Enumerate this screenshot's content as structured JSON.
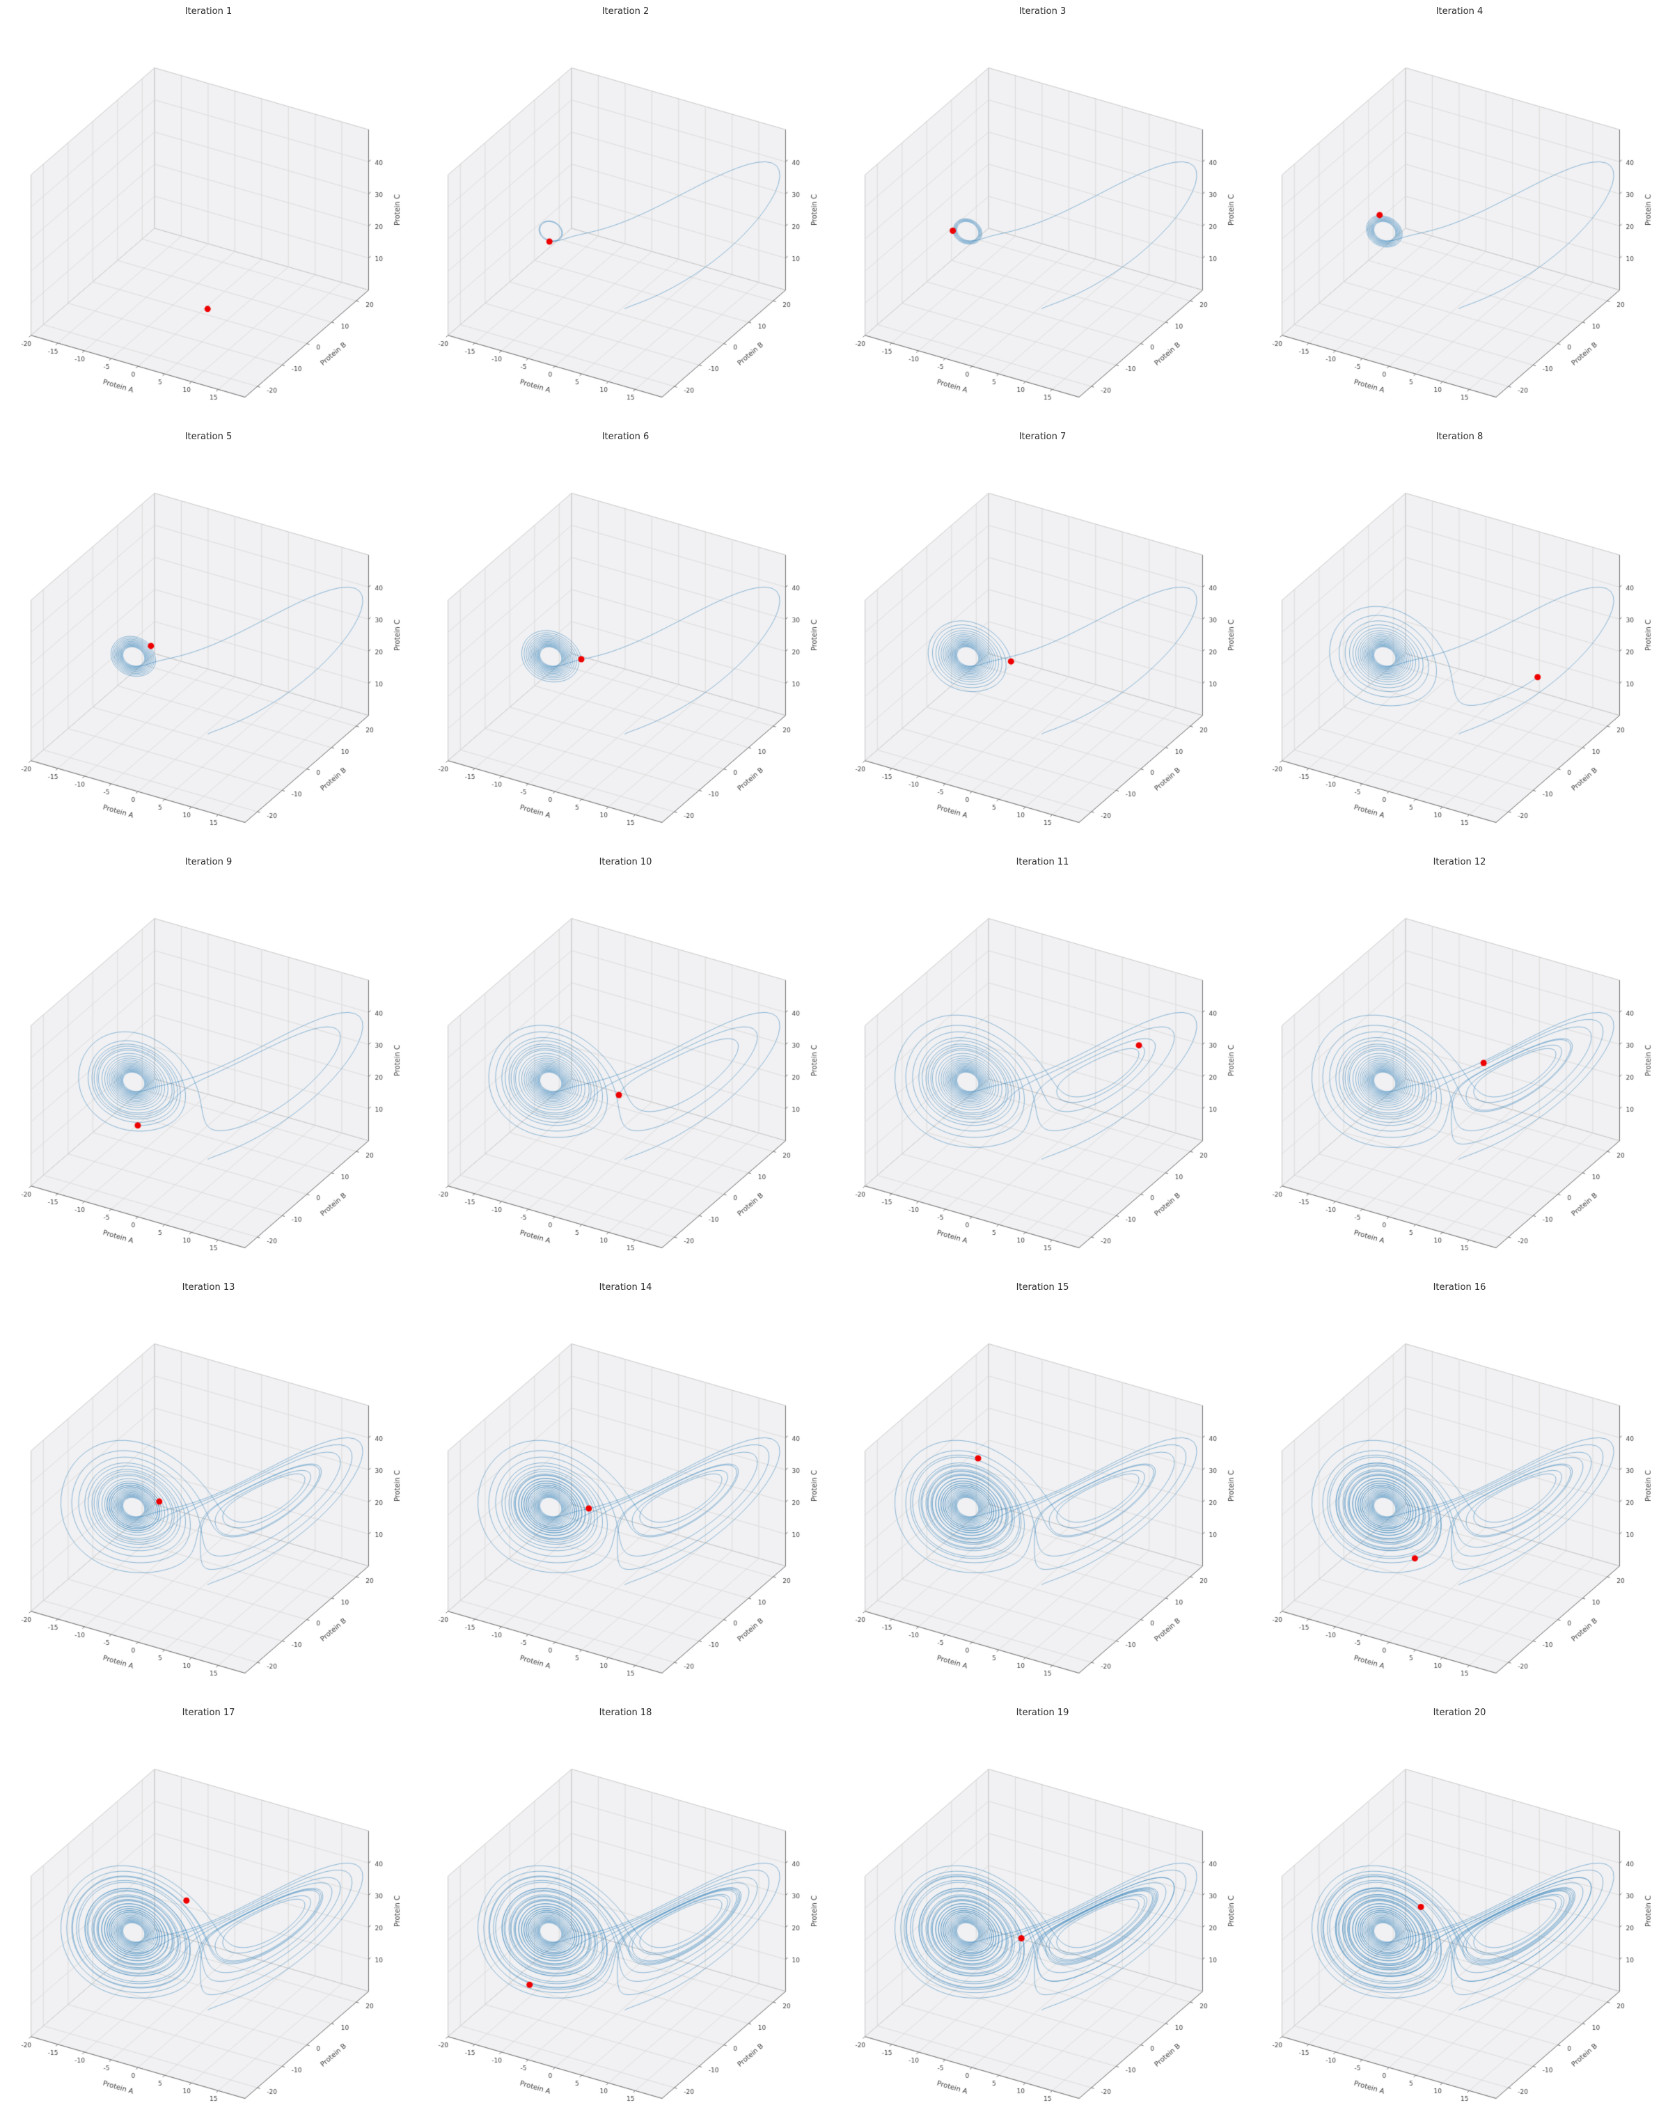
{
  "page": {
    "background": "#ffffff"
  },
  "chart_data": {
    "type": "line",
    "subtype": "3d_trajectory_small_multiples",
    "grid": {
      "rows": 5,
      "cols": 4
    },
    "subplots": [
      {
        "title": "Iteration 1"
      },
      {
        "title": "Iteration 2"
      },
      {
        "title": "Iteration 3"
      },
      {
        "title": "Iteration 4"
      },
      {
        "title": "Iteration 5"
      },
      {
        "title": "Iteration 6"
      },
      {
        "title": "Iteration 7"
      },
      {
        "title": "Iteration 8"
      },
      {
        "title": "Iteration 9"
      },
      {
        "title": "Iteration 10"
      },
      {
        "title": "Iteration 11"
      },
      {
        "title": "Iteration 12"
      },
      {
        "title": "Iteration 13"
      },
      {
        "title": "Iteration 14"
      },
      {
        "title": "Iteration 15"
      },
      {
        "title": "Iteration 16"
      },
      {
        "title": "Iteration 17"
      },
      {
        "title": "Iteration 18"
      },
      {
        "title": "Iteration 19"
      },
      {
        "title": "Iteration 20"
      }
    ],
    "axes": {
      "x": {
        "label": "Protein A",
        "range": [
          -20,
          20
        ],
        "ticks": [
          -20,
          -15,
          -10,
          -5,
          0,
          5,
          10,
          15
        ]
      },
      "y": {
        "label": "Protein B",
        "range": [
          -25,
          25
        ],
        "ticks": [
          -20,
          -10,
          0,
          10,
          20
        ]
      },
      "z": {
        "label": "Protein C",
        "range": [
          0,
          50
        ],
        "ticks": [
          10,
          20,
          30,
          40
        ]
      }
    },
    "view": {
      "elev": 30,
      "azim": -60,
      "z_aspect": 0.75
    },
    "system": {
      "name": "lorenz",
      "sigma": 10,
      "rho": 28,
      "beta": 2.6666667,
      "dt": 0.008,
      "steps_per_iteration": 250,
      "initial": [
        1,
        1,
        1
      ]
    },
    "marker": {
      "shape": "circle",
      "color": "#ee0000",
      "radius": 4.5
    },
    "style": {
      "line_color": "#1f77b4",
      "line_alpha": 0.78,
      "line_width": 0.65,
      "pane_color": "#f1f1f3",
      "grid_color": "#d6d6d6",
      "pane_edge_color": "#c6c6c6",
      "spine_color": "#6f6f6f",
      "tick_label_color": "#3c3c3c",
      "axis_label_color": "#3c3c3c",
      "title_color": "#2b2b2b"
    }
  }
}
